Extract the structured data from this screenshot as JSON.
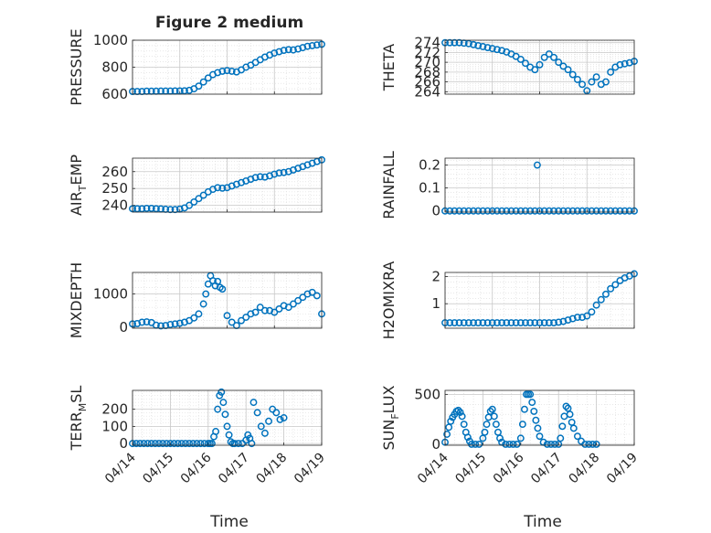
{
  "figure": {
    "title": "Figure 2 medium",
    "xlabel": "Time",
    "marker_color": "#0072BD",
    "grid": "on",
    "minor_grid": "on"
  },
  "chart_data": [
    {
      "type": "scatter",
      "ylabel": "PRESSURE",
      "ylabel_parts": [
        "PRESSURE"
      ],
      "title": "Figure 2 medium",
      "ylim": [
        600,
        1000
      ],
      "yticks": [
        600,
        800,
        1000
      ],
      "xlim": [
        "04/14",
        "04/18"
      ],
      "x": [
        0,
        0.1,
        0.2,
        0.3,
        0.4,
        0.5,
        0.6,
        0.7,
        0.8,
        0.9,
        1.0,
        1.1,
        1.2,
        1.3,
        1.4,
        1.5,
        1.6,
        1.7,
        1.8,
        1.9,
        2.0,
        2.1,
        2.2,
        2.3,
        2.4,
        2.5,
        2.6,
        2.7,
        2.8,
        2.9,
        3.0,
        3.1,
        3.2,
        3.3,
        3.4,
        3.5,
        3.6,
        3.7,
        3.8,
        3.9,
        4.0
      ],
      "y": [
        620,
        620,
        620,
        622,
        622,
        622,
        623,
        623,
        623,
        624,
        624,
        625,
        628,
        640,
        660,
        690,
        720,
        745,
        760,
        770,
        775,
        770,
        765,
        780,
        800,
        815,
        835,
        855,
        875,
        890,
        905,
        915,
        925,
        930,
        928,
        935,
        945,
        955,
        960,
        965,
        970
      ]
    },
    {
      "type": "scatter",
      "ylabel": "THETA",
      "ylabel_parts": [
        "THETA"
      ],
      "ylim": [
        263.5,
        274.5
      ],
      "yticks": [
        264,
        266,
        268,
        270,
        272,
        274
      ],
      "xlim": [
        "04/14",
        "04/18"
      ],
      "x": [
        0,
        0.1,
        0.2,
        0.3,
        0.4,
        0.5,
        0.6,
        0.7,
        0.8,
        0.9,
        1.0,
        1.1,
        1.2,
        1.3,
        1.4,
        1.5,
        1.6,
        1.7,
        1.8,
        1.9,
        2.0,
        2.1,
        2.2,
        2.3,
        2.4,
        2.5,
        2.6,
        2.7,
        2.8,
        2.9,
        3.0,
        3.1,
        3.2,
        3.3,
        3.4,
        3.5,
        3.6,
        3.7,
        3.8,
        3.9,
        4.0
      ],
      "y": [
        274,
        274,
        274,
        274,
        273.9,
        273.8,
        273.6,
        273.4,
        273.2,
        273,
        272.8,
        272.6,
        272.4,
        272.1,
        271.7,
        271.2,
        270.6,
        269.8,
        269,
        268.5,
        269.5,
        271,
        271.7,
        271,
        270,
        269.2,
        268.5,
        267.5,
        266.5,
        265.5,
        264.2,
        266,
        267,
        265.5,
        266,
        268,
        269,
        269.5,
        269.7,
        269.9,
        270.2
      ]
    },
    {
      "type": "scatter",
      "ylabel": "AIR_TEMP",
      "ylabel_parts": [
        "AIR",
        "T",
        "EMP"
      ],
      "ylim": [
        236,
        268
      ],
      "yticks": [
        240,
        250,
        260
      ],
      "xlim": [
        "04/14",
        "04/18"
      ],
      "x": [
        0,
        0.1,
        0.2,
        0.3,
        0.4,
        0.5,
        0.6,
        0.7,
        0.8,
        0.9,
        1.0,
        1.1,
        1.2,
        1.3,
        1.4,
        1.5,
        1.6,
        1.7,
        1.8,
        1.9,
        2.0,
        2.1,
        2.2,
        2.3,
        2.4,
        2.5,
        2.6,
        2.7,
        2.8,
        2.9,
        3.0,
        3.1,
        3.2,
        3.3,
        3.4,
        3.5,
        3.6,
        3.7,
        3.8,
        3.9,
        4.0
      ],
      "y": [
        238,
        238,
        238,
        238.2,
        238.2,
        238,
        237.9,
        237.7,
        237.5,
        237.5,
        237.8,
        238.5,
        240,
        242,
        244,
        246,
        248,
        249.5,
        250.5,
        250.2,
        250.5,
        251.5,
        252.5,
        253.5,
        254.5,
        255.5,
        256.5,
        257,
        256.8,
        257.5,
        258.5,
        259.2,
        259.5,
        260,
        261,
        262,
        263,
        264,
        265,
        266,
        267
      ]
    },
    {
      "type": "scatter",
      "ylabel": "RAINFALL",
      "ylabel_parts": [
        "RAINFALL"
      ],
      "ylim": [
        -0.005,
        0.23
      ],
      "yticks": [
        0,
        0.1,
        0.2
      ],
      "xlim": [
        "04/14",
        "04/18"
      ],
      "x": [
        0,
        0.1,
        0.2,
        0.3,
        0.4,
        0.5,
        0.6,
        0.7,
        0.8,
        0.9,
        1.0,
        1.1,
        1.2,
        1.3,
        1.4,
        1.5,
        1.6,
        1.7,
        1.8,
        1.9,
        2.0,
        2.1,
        2.2,
        2.3,
        2.4,
        2.5,
        2.6,
        2.7,
        2.8,
        2.9,
        3.0,
        3.1,
        3.2,
        3.3,
        3.4,
        3.5,
        3.6,
        3.7,
        3.8,
        3.9,
        4.0,
        1.95
      ],
      "y": [
        0,
        0,
        0,
        0,
        0,
        0,
        0,
        0,
        0,
        0,
        0,
        0,
        0,
        0,
        0,
        0,
        0,
        0,
        0,
        0,
        0,
        0,
        0,
        0,
        0,
        0,
        0,
        0,
        0,
        0,
        0,
        0,
        0,
        0,
        0,
        0,
        0,
        0,
        0,
        0,
        0,
        0.2
      ]
    },
    {
      "type": "scatter",
      "ylabel": "MIXDEPTH",
      "ylabel_parts": [
        "MIXDEPTH"
      ],
      "ylim": [
        -30,
        1650
      ],
      "yticks": [
        0,
        1000
      ],
      "xlim": [
        "04/14",
        "04/18"
      ],
      "x": [
        0,
        0.1,
        0.2,
        0.3,
        0.4,
        0.5,
        0.6,
        0.7,
        0.8,
        0.9,
        1.0,
        1.1,
        1.2,
        1.3,
        1.4,
        1.5,
        1.55,
        1.6,
        1.65,
        1.7,
        1.75,
        1.8,
        1.85,
        1.9,
        2.0,
        2.1,
        2.2,
        2.3,
        2.4,
        2.5,
        2.6,
        2.7,
        2.8,
        2.9,
        3.0,
        3.1,
        3.2,
        3.3,
        3.4,
        3.5,
        3.6,
        3.7,
        3.8,
        3.9,
        4.0
      ],
      "y": [
        100,
        110,
        150,
        160,
        140,
        60,
        40,
        50,
        80,
        100,
        120,
        150,
        200,
        280,
        400,
        700,
        1000,
        1300,
        1550,
        1400,
        1250,
        1380,
        1200,
        1150,
        350,
        150,
        50,
        200,
        300,
        400,
        450,
        600,
        500,
        500,
        450,
        550,
        650,
        600,
        700,
        800,
        900,
        1000,
        1050,
        950,
        400
      ]
    },
    {
      "type": "scatter",
      "ylabel": "H2OMIXRA",
      "ylabel_parts": [
        "H2OMIXRA"
      ],
      "ylim": [
        0.1,
        2.15
      ],
      "yticks": [
        1,
        2
      ],
      "xlim": [
        "04/14",
        "04/18"
      ],
      "x": [
        0,
        0.1,
        0.2,
        0.3,
        0.4,
        0.5,
        0.6,
        0.7,
        0.8,
        0.9,
        1.0,
        1.1,
        1.2,
        1.3,
        1.4,
        1.5,
        1.6,
        1.7,
        1.8,
        1.9,
        2.0,
        2.1,
        2.2,
        2.3,
        2.4,
        2.5,
        2.6,
        2.7,
        2.8,
        2.9,
        3.0,
        3.1,
        3.2,
        3.3,
        3.4,
        3.5,
        3.6,
        3.7,
        3.8,
        3.9,
        4.0
      ],
      "y": [
        0.3,
        0.3,
        0.3,
        0.3,
        0.3,
        0.3,
        0.3,
        0.3,
        0.3,
        0.3,
        0.3,
        0.3,
        0.3,
        0.3,
        0.3,
        0.3,
        0.3,
        0.3,
        0.3,
        0.3,
        0.3,
        0.3,
        0.3,
        0.3,
        0.32,
        0.35,
        0.4,
        0.45,
        0.5,
        0.5,
        0.55,
        0.7,
        0.95,
        1.15,
        1.35,
        1.55,
        1.7,
        1.85,
        1.95,
        2.02,
        2.1
      ]
    },
    {
      "type": "scatter",
      "ylabel": "TERR_MSL",
      "ylabel_parts": [
        "TERR",
        "M",
        "SL"
      ],
      "ylim": [
        -10,
        310
      ],
      "yticks": [
        0,
        100,
        200
      ],
      "xlim": [
        "04/14",
        "04/19"
      ],
      "x": [
        0,
        0.1,
        0.2,
        0.3,
        0.4,
        0.5,
        0.6,
        0.7,
        0.8,
        0.9,
        1.0,
        1.1,
        1.2,
        1.3,
        1.4,
        1.5,
        1.6,
        1.7,
        1.8,
        1.9,
        2.0,
        2.05,
        2.1,
        2.15,
        2.2,
        2.25,
        2.3,
        2.35,
        2.4,
        2.45,
        2.5,
        2.55,
        2.6,
        2.65,
        2.7,
        2.8,
        2.9,
        3.0,
        3.05,
        3.1,
        3.15,
        3.2,
        3.3,
        3.4,
        3.5,
        3.6,
        3.7,
        3.8,
        3.9,
        4.0
      ],
      "y": [
        0,
        0,
        0,
        0,
        0,
        0,
        0,
        0,
        0,
        0,
        0,
        0,
        0,
        0,
        0,
        0,
        0,
        0,
        0,
        0,
        0,
        0,
        0,
        40,
        70,
        200,
        280,
        300,
        240,
        170,
        100,
        50,
        10,
        0,
        0,
        0,
        0,
        20,
        50,
        30,
        0,
        240,
        180,
        100,
        60,
        130,
        200,
        180,
        140,
        150
      ]
    },
    {
      "type": "scatter",
      "ylabel": "SUN_FLUX",
      "ylabel_parts": [
        "SUN",
        "F",
        "LUX"
      ],
      "ylim": [
        -10,
        540
      ],
      "yticks": [
        0,
        500
      ],
      "xlim": [
        "04/14",
        "04/19"
      ],
      "x": [
        0,
        0.05,
        0.1,
        0.15,
        0.2,
        0.25,
        0.3,
        0.35,
        0.4,
        0.45,
        0.5,
        0.55,
        0.6,
        0.65,
        0.7,
        0.8,
        0.9,
        1.0,
        1.05,
        1.1,
        1.15,
        1.2,
        1.25,
        1.3,
        1.35,
        1.4,
        1.45,
        1.5,
        1.6,
        1.7,
        1.8,
        1.9,
        2.0,
        2.05,
        2.1,
        2.15,
        2.2,
        2.25,
        2.3,
        2.35,
        2.4,
        2.45,
        2.5,
        2.6,
        2.7,
        2.8,
        2.9,
        3.0,
        3.05,
        3.1,
        3.15,
        3.2,
        3.25,
        3.3,
        3.35,
        3.4,
        3.5,
        3.6,
        3.7,
        3.8,
        3.9,
        4.0
      ],
      "y": [
        20,
        100,
        170,
        230,
        270,
        300,
        330,
        340,
        320,
        280,
        200,
        120,
        70,
        30,
        0,
        0,
        0,
        60,
        120,
        200,
        270,
        330,
        350,
        280,
        200,
        120,
        60,
        20,
        0,
        0,
        0,
        0,
        60,
        200,
        350,
        500,
        500,
        500,
        420,
        330,
        240,
        160,
        80,
        20,
        0,
        0,
        0,
        0,
        60,
        180,
        280,
        380,
        360,
        300,
        220,
        160,
        80,
        30,
        0,
        0,
        0,
        0
      ]
    }
  ],
  "x_ticks": [
    "04/14",
    "04/15",
    "04/16",
    "04/17",
    "04/18",
    "04/19"
  ]
}
